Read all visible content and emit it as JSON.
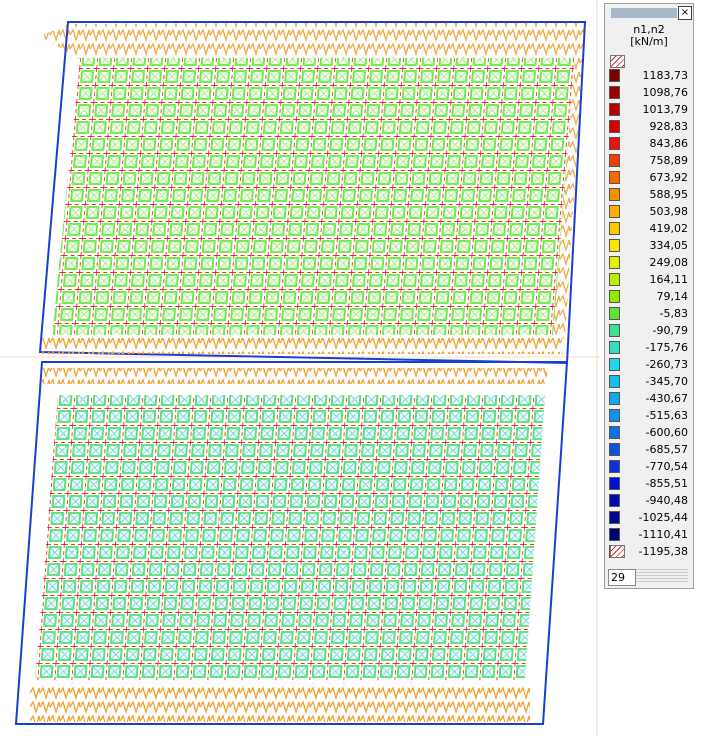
{
  "legend": {
    "title": "n1,n2",
    "unit": "[kN/m]",
    "count": "29",
    "entries": [
      {
        "label": "1183,73",
        "color": "#7a0000"
      },
      {
        "label": "1098,76",
        "color": "#990000"
      },
      {
        "label": "1013,79",
        "color": "#b80000"
      },
      {
        "label": "928,83",
        "color": "#d40000"
      },
      {
        "label": "843,86",
        "color": "#e81010"
      },
      {
        "label": "758,89",
        "color": "#f04000"
      },
      {
        "label": "673,92",
        "color": "#f56a00"
      },
      {
        "label": "588,95",
        "color": "#f89000"
      },
      {
        "label": "503,98",
        "color": "#fbb000"
      },
      {
        "label": "419,02",
        "color": "#fcc800"
      },
      {
        "label": "334,05",
        "color": "#fbe800"
      },
      {
        "label": "249,08",
        "color": "#e0f000"
      },
      {
        "label": "164,11",
        "color": "#b8f000"
      },
      {
        "label": "79,14",
        "color": "#90ea00"
      },
      {
        "label": "-5,83",
        "color": "#60e030"
      },
      {
        "label": "-90,79",
        "color": "#40e090"
      },
      {
        "label": "-175,76",
        "color": "#30e0c0"
      },
      {
        "label": "-260,73",
        "color": "#20d8e8"
      },
      {
        "label": "-345,70",
        "color": "#10c0f0"
      },
      {
        "label": "-430,67",
        "color": "#10a8f0"
      },
      {
        "label": "-515,63",
        "color": "#1090f0"
      },
      {
        "label": "-600,60",
        "color": "#1070e8"
      },
      {
        "label": "-685,57",
        "color": "#1050e0"
      },
      {
        "label": "-770,54",
        "color": "#1030d8"
      },
      {
        "label": "-855,51",
        "color": "#0010d0"
      },
      {
        "label": "-940,48",
        "color": "#0008b0"
      },
      {
        "label": "-1025,44",
        "color": "#000890"
      },
      {
        "label": "-1110,41",
        "color": "#000070"
      },
      {
        "label": "-1195,38",
        "color": "#000050"
      }
    ]
  }
}
